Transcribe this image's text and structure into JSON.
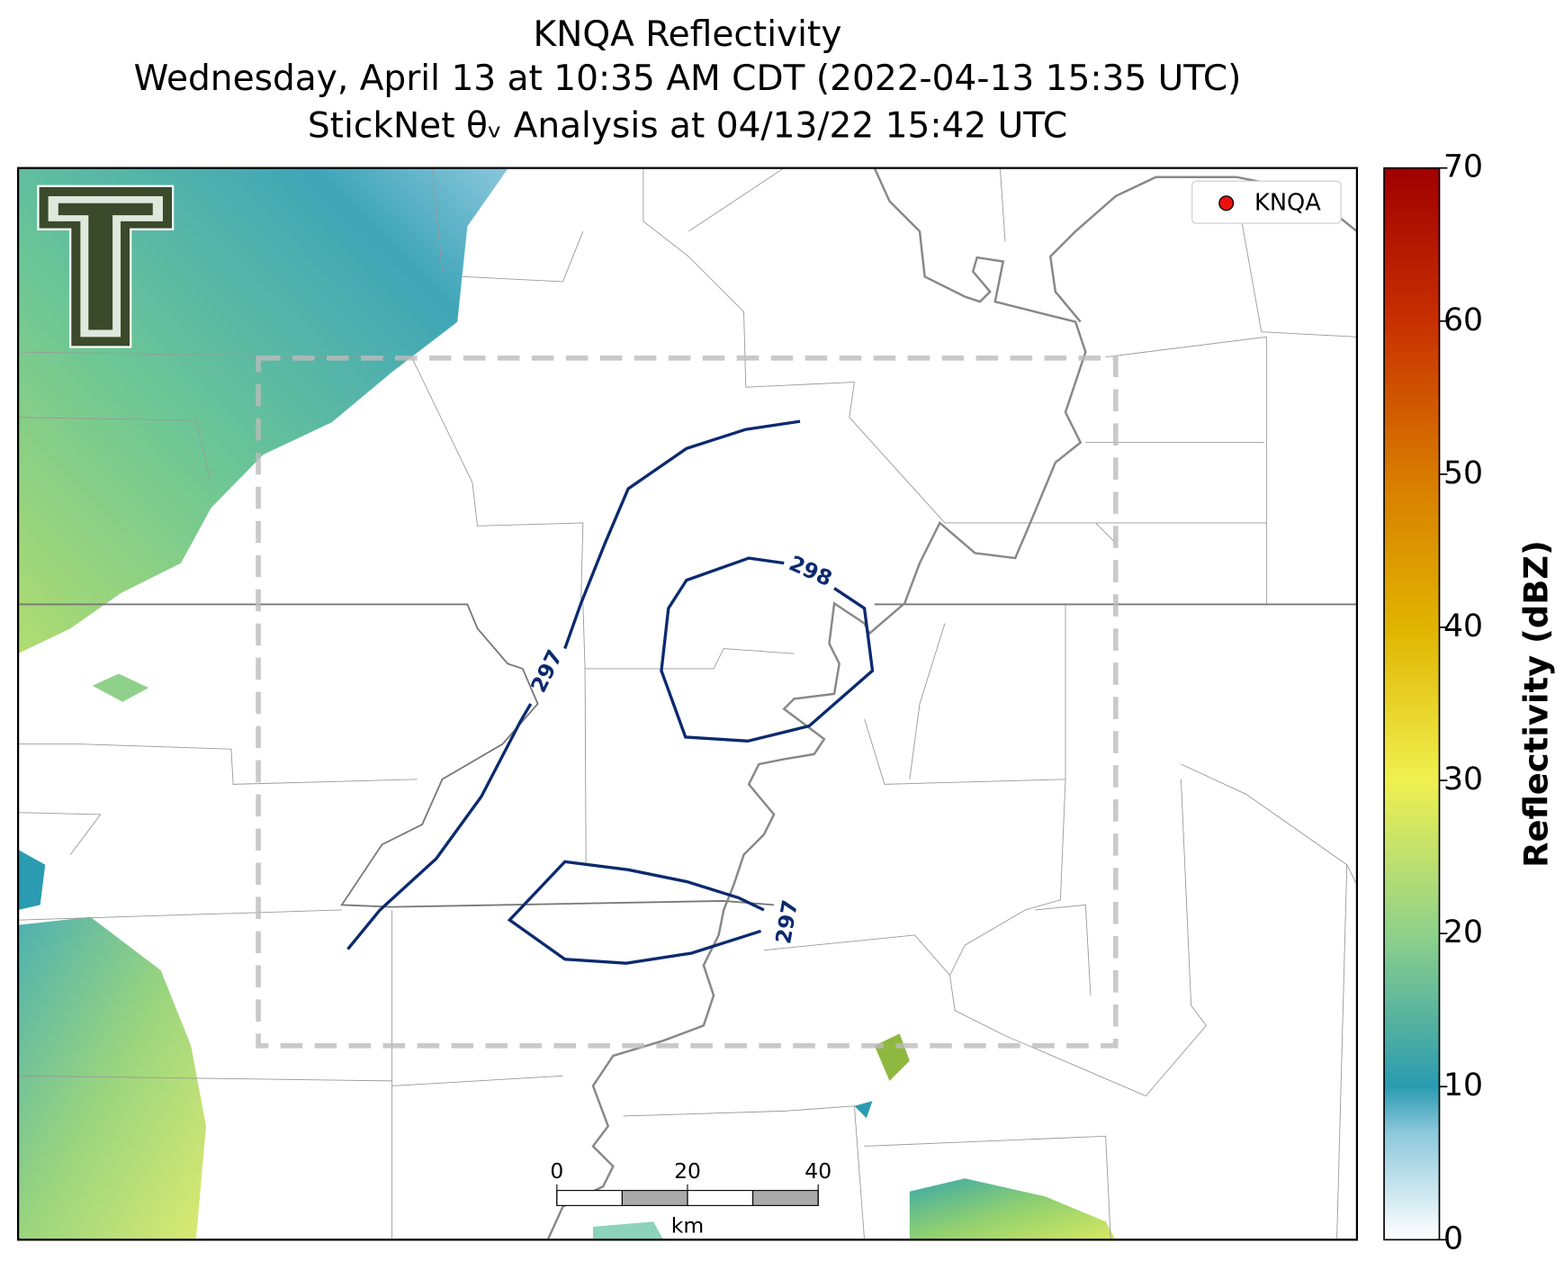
{
  "title": [
    "KNQA Reflectivity",
    "Wednesday, April 13 at 10:35 AM CDT (2022-04-13 15:35 UTC)",
    "StickNet θᵥ Analysis at 04/13/22 15:42 UTC"
  ],
  "legend": {
    "label": "KNQA"
  },
  "contours": [
    {
      "label": "297"
    },
    {
      "label": "298"
    },
    {
      "label": "297"
    }
  ],
  "scale_bar": {
    "ticks": [
      0,
      20,
      40
    ],
    "unit": "km"
  },
  "colorbar": {
    "label": "Reflectivity (dBZ)",
    "lim": [
      0,
      70
    ],
    "ticks": [
      0,
      10,
      20,
      30,
      40,
      50,
      60,
      70
    ]
  }
}
